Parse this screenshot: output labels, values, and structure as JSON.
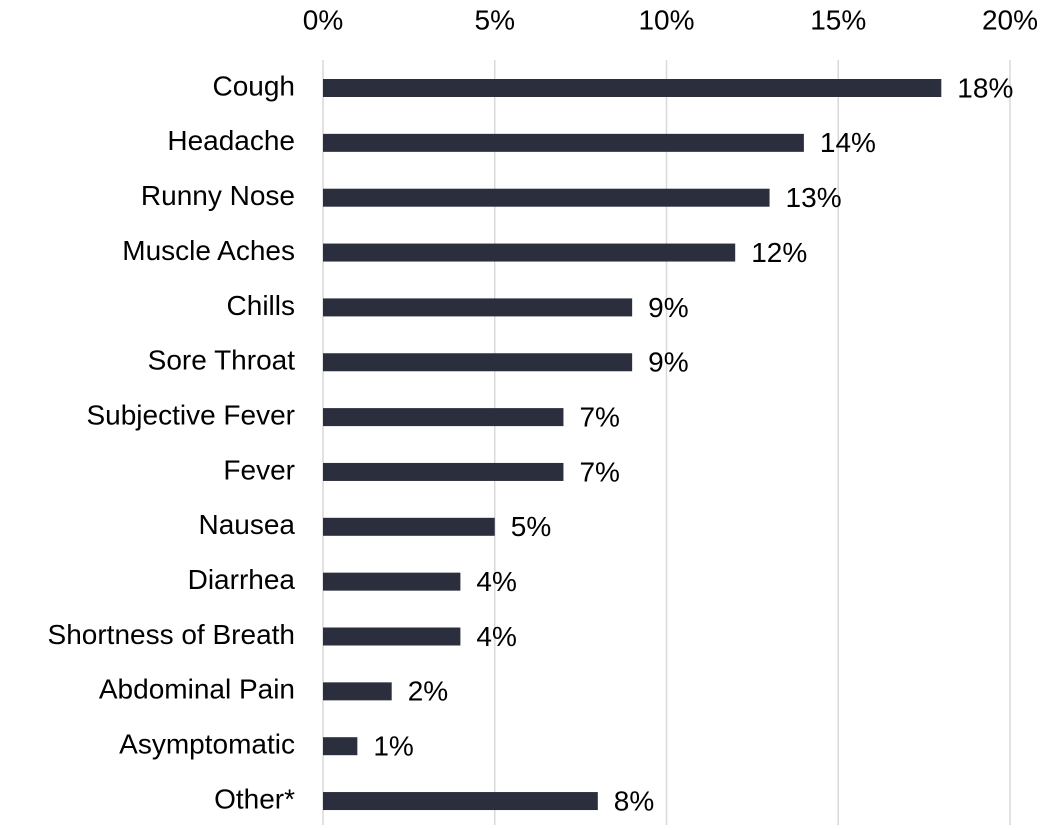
{
  "chart_data": {
    "type": "bar",
    "orientation": "horizontal",
    "categories": [
      "Cough",
      "Headache",
      "Runny Nose",
      "Muscle Aches",
      "Chills",
      "Sore Throat",
      "Subjective Fever",
      "Fever",
      "Nausea",
      "Diarrhea",
      "Shortness of Breath",
      "Abdominal Pain",
      "Asymptomatic",
      "Other*"
    ],
    "values": [
      18,
      14,
      13,
      12,
      9,
      9,
      7,
      7,
      5,
      4,
      4,
      2,
      1,
      8
    ],
    "value_labels": [
      "18%",
      "14%",
      "13%",
      "12%",
      "9%",
      "9%",
      "7%",
      "7%",
      "5%",
      "4%",
      "4%",
      "2%",
      "1%",
      "8%"
    ],
    "color": "#2b2f3d",
    "xlim": [
      0,
      20
    ],
    "xticks": [
      {
        "value": 0,
        "label": "0%"
      },
      {
        "value": 5,
        "label": "5%"
      },
      {
        "value": 10,
        "label": "10%"
      },
      {
        "value": 15,
        "label": "15%"
      },
      {
        "value": 20,
        "label": "20%"
      }
    ],
    "grid": true
  }
}
